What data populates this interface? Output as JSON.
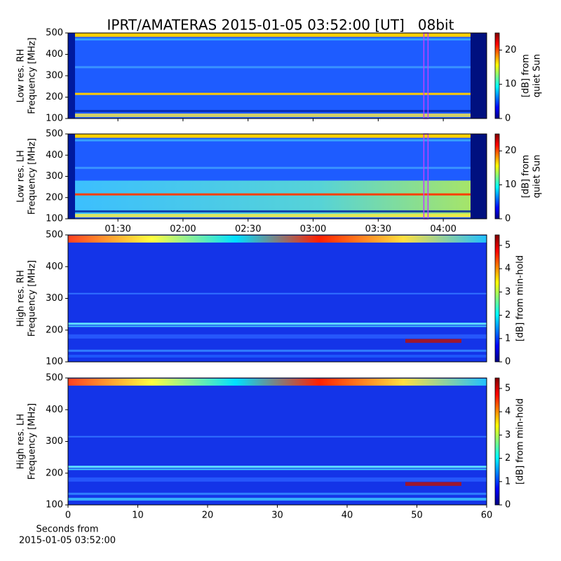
{
  "title": "IPRT/AMATERAS 2015-01-05 03:52:00 [UT]   08bit",
  "chart_data": [
    {
      "type": "heatmap",
      "ylabel": [
        "Low res. RH",
        "Frequency [MHz]"
      ],
      "ylim": [
        100,
        500
      ],
      "yticks": [
        100,
        200,
        300,
        400,
        500
      ],
      "vline": 232,
      "vline_color": "#c040ff",
      "colormap": "jet",
      "colorbar_label": [
        "[dB] from",
        "quiet Sun"
      ],
      "clim": [
        0,
        25
      ],
      "cticks": [
        0,
        10,
        20
      ]
    },
    {
      "type": "heatmap",
      "ylabel": [
        "Low res. LH",
        "Frequency [MHz]"
      ],
      "ylim": [
        100,
        500
      ],
      "yticks": [
        100,
        200,
        300,
        400,
        500
      ],
      "xlim": [
        67,
        260
      ],
      "xticks": [
        {
          "value": 90,
          "label": "01:30"
        },
        {
          "value": 120,
          "label": "02:00"
        },
        {
          "value": 150,
          "label": "02:30"
        },
        {
          "value": 180,
          "label": "03:00"
        },
        {
          "value": 210,
          "label": "03:30"
        },
        {
          "value": 240,
          "label": "04:00"
        }
      ],
      "vline": 232,
      "vline_color": "#c040ff",
      "colormap": "jet",
      "colorbar_label": [
        "[dB] from",
        "quiet Sun"
      ],
      "clim": [
        0,
        25
      ],
      "cticks": [
        0,
        10,
        20
      ]
    },
    {
      "type": "heatmap",
      "ylabel": [
        "High res. RH",
        "Frequency [MHz]"
      ],
      "ylim": [
        100,
        500
      ],
      "yticks": [
        100,
        200,
        300,
        400,
        500
      ],
      "colormap": "jet",
      "colorbar_label": [
        "[dB] from min-hold"
      ],
      "clim": [
        0,
        5.45
      ],
      "cticks": [
        0,
        1,
        2,
        3,
        4,
        5
      ]
    },
    {
      "type": "heatmap",
      "ylabel": [
        "High res. LH",
        "Frequency [MHz]"
      ],
      "ylim": [
        100,
        500
      ],
      "yticks": [
        100,
        200,
        300,
        400,
        500
      ],
      "xlim": [
        0,
        60
      ],
      "xticks": [
        0,
        10,
        20,
        30,
        40,
        50,
        60
      ],
      "xlabel": [
        "Seconds from",
        "2015-01-05 03:52:00"
      ],
      "colormap": "jet",
      "colorbar_label": [
        "[dB] from min-hold"
      ],
      "clim": [
        0,
        5.45
      ],
      "cticks": [
        0,
        1,
        2,
        3,
        4,
        5
      ]
    }
  ]
}
